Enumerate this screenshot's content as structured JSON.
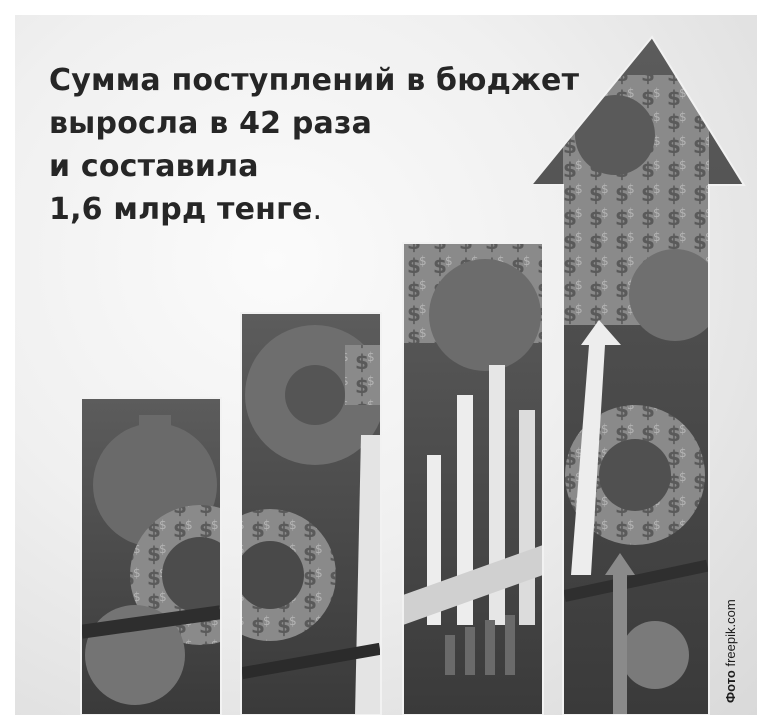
{
  "headline": {
    "line1": "Сумма поступлений в бюджет",
    "line2": "выросла в 42 раза",
    "line3": "и составила",
    "line4_bold": "1,6 млрд тенге",
    "line4_end": "."
  },
  "credit": {
    "prefix": "Фото",
    "source": "freepik.com"
  },
  "art": {
    "column_count": 4,
    "motif_icons": [
      "gear-icon",
      "dollar-sign-pattern",
      "bar-chart-icon",
      "up-arrow-icon"
    ]
  }
}
